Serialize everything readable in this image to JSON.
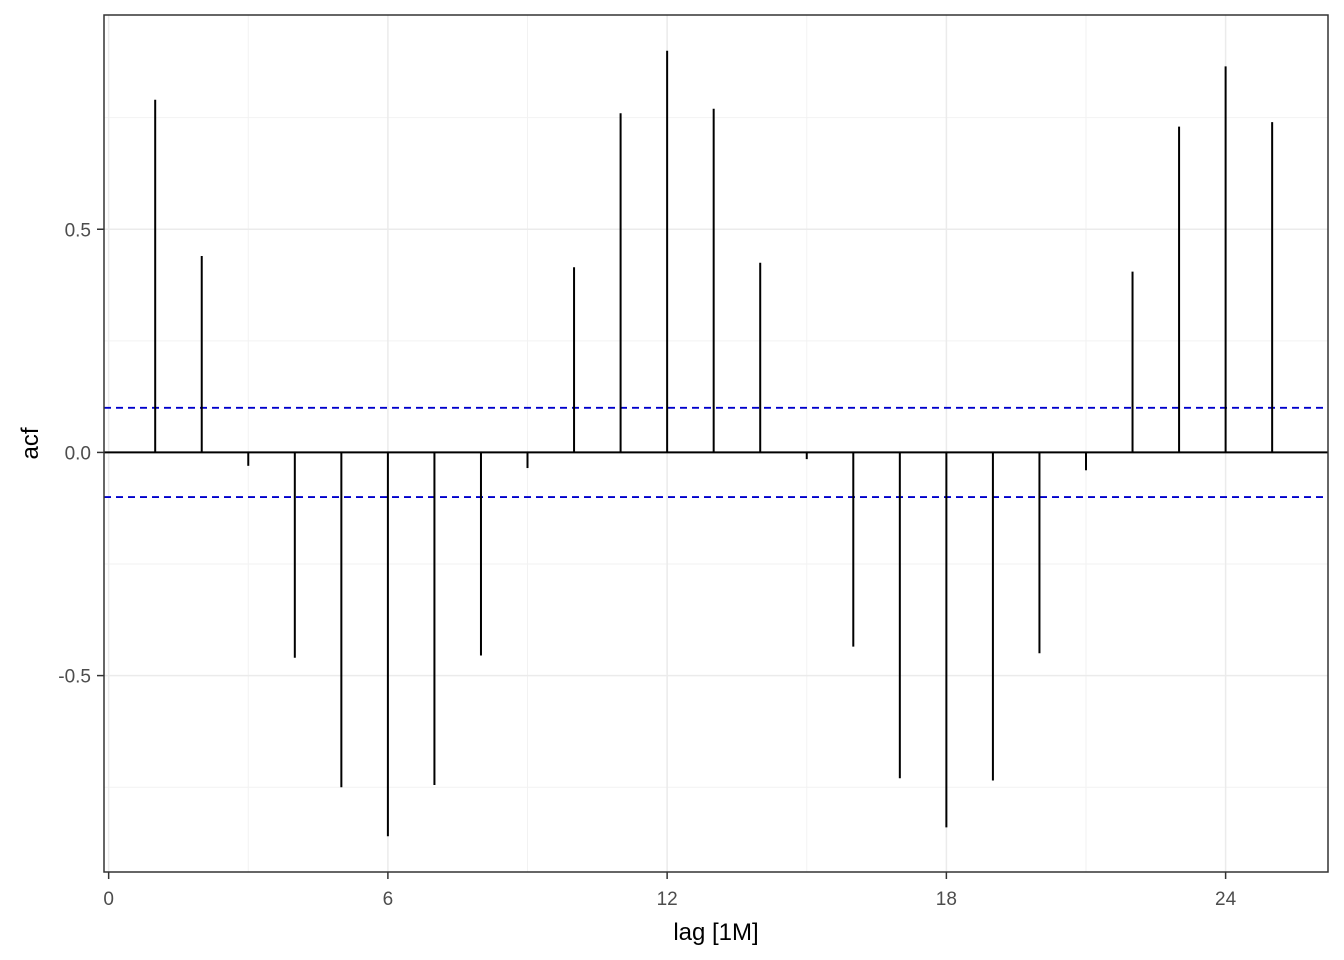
{
  "chart_data": {
    "type": "bar",
    "subtype": "acf-correlogram",
    "xlabel": "lag [1M]",
    "ylabel": "acf",
    "x_ticks": [
      0,
      6,
      12,
      18,
      24
    ],
    "x_tick_labels": [
      "0",
      "6",
      "12",
      "18",
      "24"
    ],
    "y_ticks": [
      -0.5,
      0.0,
      0.5
    ],
    "y_tick_labels": [
      "-0.5",
      "0.0",
      "0.5"
    ],
    "xlim": [
      -0.1,
      26.2
    ],
    "ylim": [
      -0.94,
      0.98
    ],
    "lags": [
      1,
      2,
      3,
      4,
      5,
      6,
      7,
      8,
      9,
      10,
      11,
      12,
      13,
      14,
      15,
      16,
      17,
      18,
      19,
      20,
      21,
      22,
      23,
      24,
      25
    ],
    "values": [
      0.79,
      0.44,
      -0.03,
      -0.46,
      -0.75,
      -0.86,
      -0.745,
      -0.455,
      -0.035,
      0.415,
      0.76,
      0.9,
      0.77,
      0.425,
      -0.015,
      -0.435,
      -0.73,
      -0.84,
      -0.735,
      -0.45,
      -0.04,
      0.405,
      0.73,
      0.865,
      0.74
    ],
    "confidence_bound": 0.1,
    "grid": true,
    "colors": {
      "stems": "#000000",
      "confidence": "#0000cc",
      "grid_major": "#ebebeb",
      "grid_minor": "#f2f2f2",
      "panel_border": "#333333"
    }
  }
}
